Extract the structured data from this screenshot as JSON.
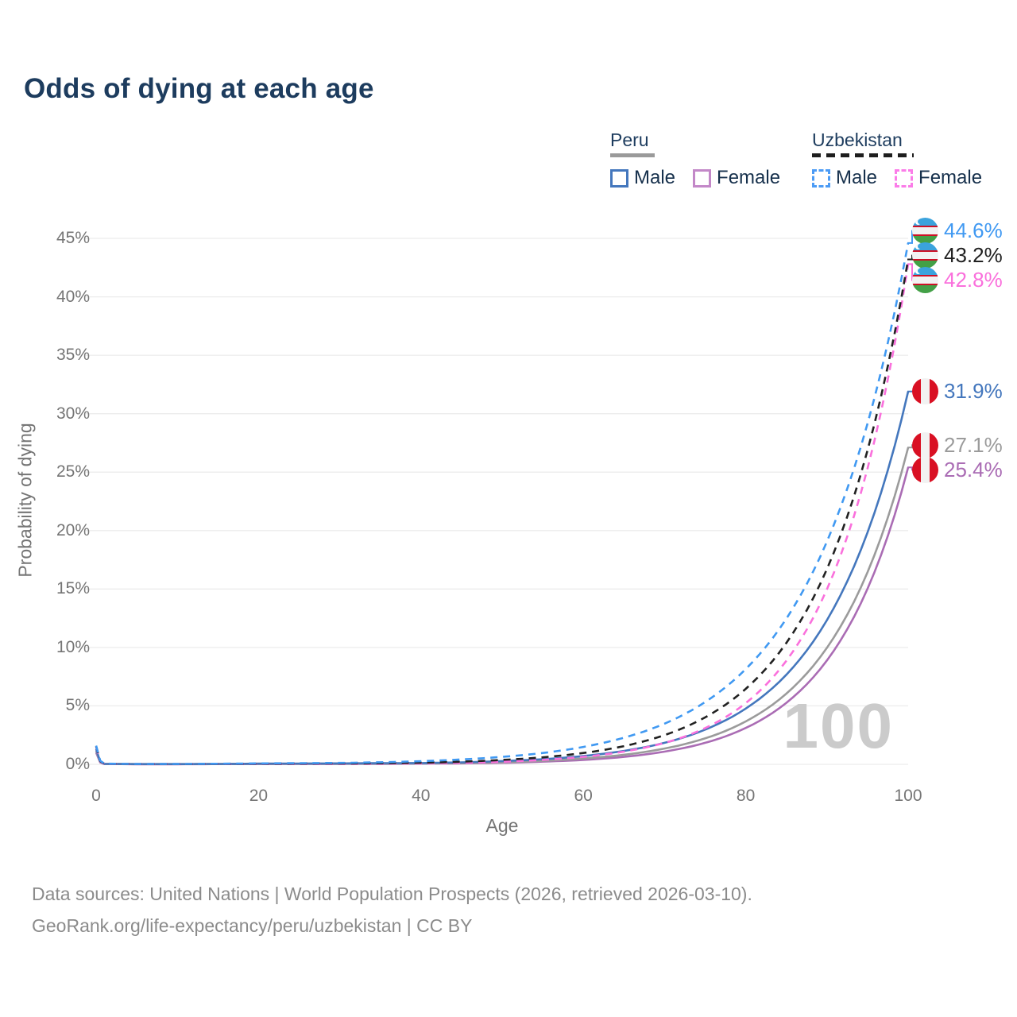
{
  "title": "Odds of dying at each age",
  "legend": {
    "groups": [
      {
        "label": "Peru",
        "style": "solid",
        "line_color": "#9a9a9a",
        "items": [
          {
            "label": "Male",
            "color": "#4477bd"
          },
          {
            "label": "Female",
            "color": "#c388c8"
          }
        ]
      },
      {
        "label": "Uzbekistan",
        "style": "dashed",
        "line_color": "#1e1e1e",
        "items": [
          {
            "label": "Male",
            "color": "#4b9bf5"
          },
          {
            "label": "Female",
            "color": "#fb7ce8"
          }
        ]
      }
    ]
  },
  "watermark": "100",
  "footer": {
    "line1": "Data sources: United Nations | World Population Prospects (2026, retrieved 2026-03-10).",
    "line2": "GeoRank.org/life-expectancy/peru/uzbekistan | CC BY"
  },
  "chart_data": {
    "type": "line",
    "title": "Odds of dying at each age",
    "xlabel": "Age",
    "ylabel": "Probability of dying",
    "xlim": [
      0,
      100
    ],
    "ylim": [
      0,
      45
    ],
    "grid": "horizontal",
    "x_ticks": [
      {
        "v": 0,
        "label": "0"
      },
      {
        "v": 20,
        "label": "20"
      },
      {
        "v": 40,
        "label": "40"
      },
      {
        "v": 60,
        "label": "60"
      },
      {
        "v": 80,
        "label": "80"
      },
      {
        "v": 100,
        "label": "100"
      }
    ],
    "y_ticks": [
      {
        "v": 0,
        "label": "0%"
      },
      {
        "v": 5,
        "label": "5%"
      },
      {
        "v": 10,
        "label": "10%"
      },
      {
        "v": 15,
        "label": "15%"
      },
      {
        "v": 20,
        "label": "20%"
      },
      {
        "v": 25,
        "label": "25%"
      },
      {
        "v": 30,
        "label": "30%"
      },
      {
        "v": 35,
        "label": "35%"
      },
      {
        "v": 40,
        "label": "40%"
      },
      {
        "v": 45,
        "label": "45%"
      }
    ],
    "ages": [
      0,
      1,
      5,
      10,
      15,
      20,
      25,
      30,
      35,
      40,
      45,
      50,
      55,
      60,
      65,
      70,
      75,
      80,
      85,
      90,
      95,
      100
    ],
    "series": [
      {
        "id": "peru_female",
        "name": "Peru Female",
        "country": "peru",
        "color": "#aa6cb4",
        "dashed": false,
        "values": [
          1.0,
          0.03,
          0.01,
          0.01,
          0.02,
          0.02,
          0.03,
          0.03,
          0.04,
          0.06,
          0.08,
          0.13,
          0.23,
          0.38,
          0.64,
          1.09,
          1.84,
          3.11,
          5.26,
          8.89,
          15.03,
          25.4
        ],
        "end_value": 25.4,
        "end_label": "25.4%"
      },
      {
        "id": "peru_overall",
        "name": "Peru",
        "country": "peru",
        "color": "#9b9b9b",
        "dashed": false,
        "values": [
          1.15,
          0.04,
          0.02,
          0.02,
          0.02,
          0.04,
          0.05,
          0.05,
          0.06,
          0.08,
          0.11,
          0.18,
          0.3,
          0.5,
          0.82,
          1.35,
          2.22,
          3.67,
          6.05,
          9.97,
          16.44,
          27.1
        ],
        "end_value": 27.1,
        "end_label": "27.1%"
      },
      {
        "id": "peru_male",
        "name": "Peru Male",
        "country": "peru",
        "color": "#4477bd",
        "dashed": false,
        "values": [
          1.3,
          0.04,
          0.02,
          0.02,
          0.03,
          0.06,
          0.07,
          0.08,
          0.1,
          0.11,
          0.17,
          0.28,
          0.44,
          0.71,
          1.15,
          1.84,
          2.97,
          4.77,
          7.67,
          12.34,
          19.84,
          31.9
        ],
        "end_value": 31.9,
        "end_label": "31.9%"
      },
      {
        "id": "uz_female",
        "name": "Uzbekistan Female",
        "country": "uzbekistan",
        "color": "#fa70dc",
        "dashed": true,
        "values": [
          1.5,
          0.04,
          0.02,
          0.02,
          0.02,
          0.03,
          0.04,
          0.04,
          0.05,
          0.08,
          0.13,
          0.22,
          0.38,
          0.64,
          1.09,
          1.83,
          3.1,
          5.24,
          8.86,
          14.98,
          25.32,
          42.8
        ],
        "end_value": 42.8,
        "end_label": "42.8%"
      },
      {
        "id": "uz_overall",
        "name": "Uzbekistan",
        "country": "uzbekistan",
        "color": "#212121",
        "dashed": true,
        "values": [
          1.55,
          0.05,
          0.02,
          0.02,
          0.03,
          0.05,
          0.06,
          0.07,
          0.09,
          0.14,
          0.23,
          0.38,
          0.6,
          0.97,
          1.56,
          2.5,
          4.02,
          6.46,
          10.39,
          16.71,
          26.87,
          43.2
        ],
        "end_value": 43.2,
        "end_label": "43.2%"
      },
      {
        "id": "uz_male",
        "name": "Uzbekistan Male",
        "country": "uzbekistan",
        "color": "#4099f2",
        "dashed": true,
        "values": [
          1.6,
          0.06,
          0.03,
          0.03,
          0.05,
          0.08,
          0.1,
          0.12,
          0.18,
          0.27,
          0.42,
          0.64,
          0.97,
          1.49,
          2.28,
          3.48,
          5.33,
          8.15,
          12.46,
          19.06,
          29.16,
          44.6
        ],
        "end_value": 44.6,
        "end_label": "44.6%"
      }
    ]
  }
}
